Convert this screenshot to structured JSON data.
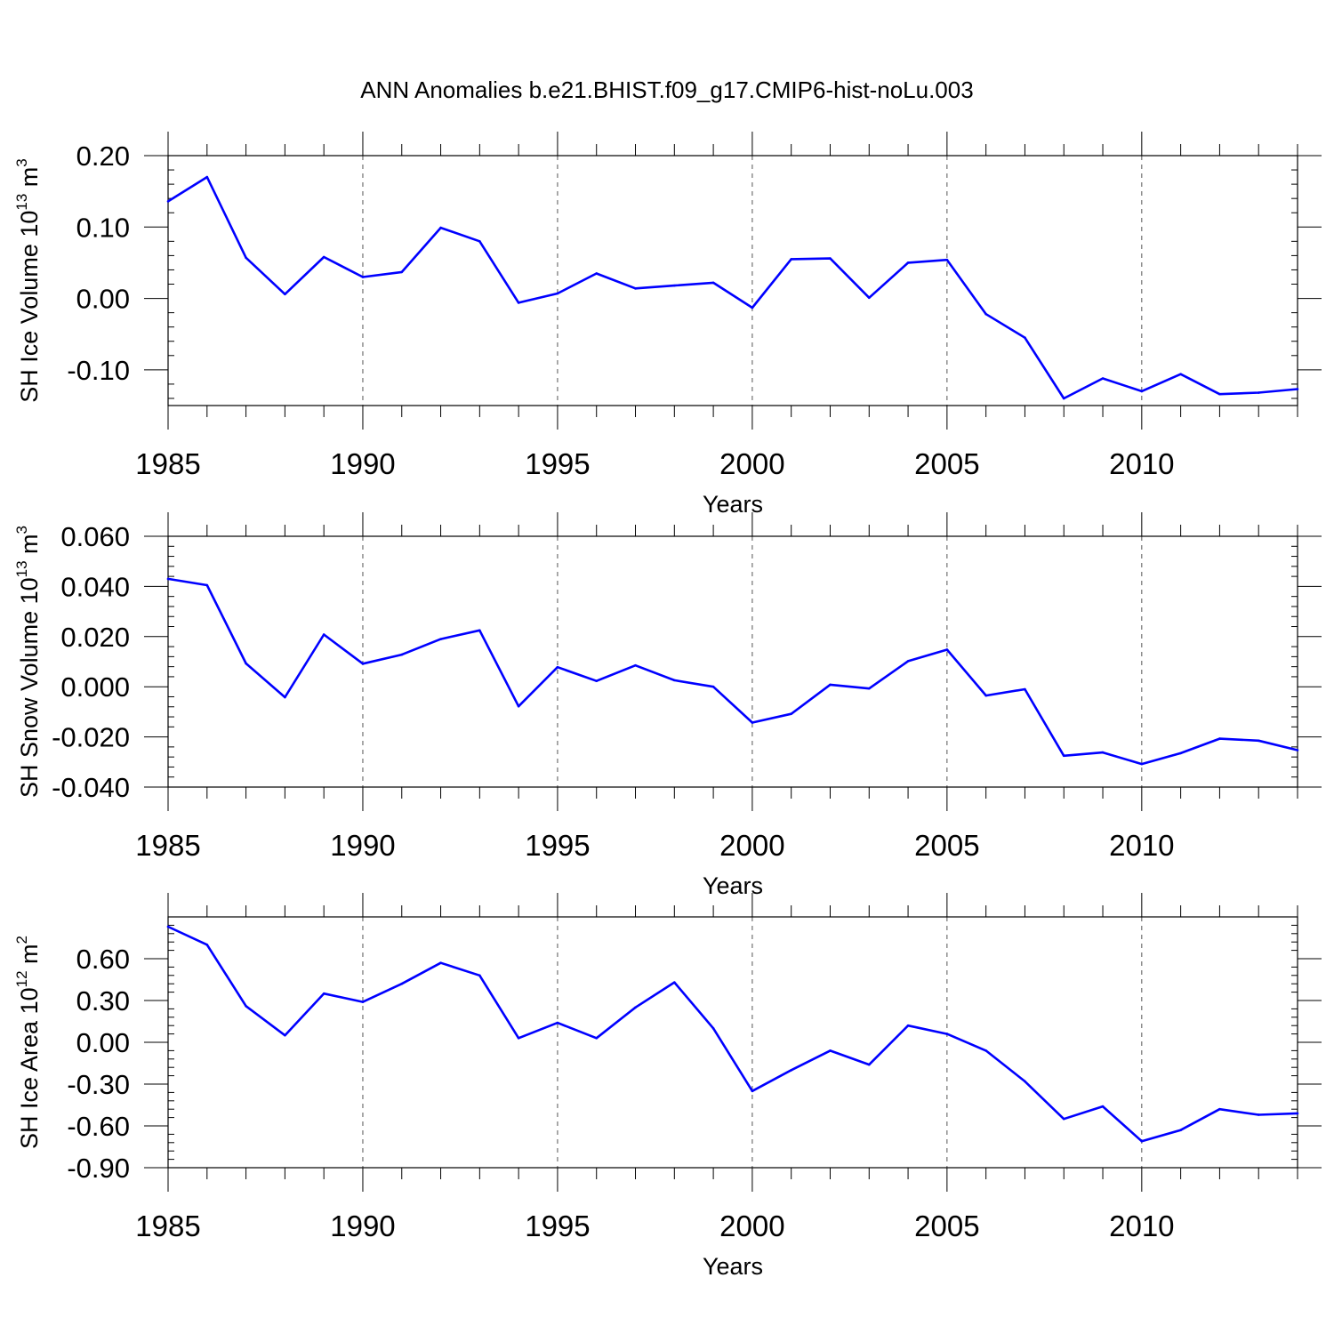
{
  "chart_data": {
    "title": "ANN Anomalies b.e21.BHIST.f09_g17.CMIP6-hist-noLu.003",
    "panels": [
      {
        "type": "line",
        "ylabel": "SH Ice Volume 10",
        "ylabel_exp": "13",
        "ylabel_unit": " m",
        "ylabel_unit_exp": "3",
        "xlabel": "Years",
        "xlim": [
          1985,
          2014
        ],
        "ylim": [
          -0.15,
          0.2
        ],
        "xticks": [
          1985,
          1990,
          1995,
          2000,
          2005,
          2010
        ],
        "xtick_labels": [
          "1985",
          "1990",
          "1995",
          "2000",
          "2005",
          "2010"
        ],
        "yticks": [
          0.2,
          0.1,
          0.0,
          -0.1
        ],
        "ytick_labels": [
          "0.20",
          "0.10",
          "0.00",
          "-0.10"
        ],
        "grid": "dashed vertical at major x ticks",
        "line_color": "#0000ff",
        "x": [
          1985,
          1986,
          1987,
          1988,
          1989,
          1990,
          1991,
          1992,
          1993,
          1994,
          1995,
          1996,
          1997,
          1998,
          1999,
          2000,
          2001,
          2002,
          2003,
          2004,
          2005,
          2006,
          2007,
          2008,
          2009,
          2010,
          2011,
          2012,
          2013,
          2014
        ],
        "values": [
          0.136,
          0.17,
          0.057,
          0.006,
          0.058,
          0.03,
          0.037,
          0.099,
          0.08,
          -0.006,
          0.007,
          0.035,
          0.014,
          0.018,
          0.022,
          -0.013,
          0.055,
          0.056,
          0.001,
          0.05,
          0.054,
          -0.022,
          -0.055,
          -0.14,
          -0.112,
          -0.13,
          -0.106,
          -0.134,
          -0.132,
          -0.127
        ]
      },
      {
        "type": "line",
        "ylabel": "SH Snow Volume 10",
        "ylabel_exp": "13",
        "ylabel_unit": " m",
        "ylabel_unit_exp": "3",
        "xlabel": "Years",
        "xlim": [
          1985,
          2014
        ],
        "ylim": [
          -0.04,
          0.06
        ],
        "xticks": [
          1985,
          1990,
          1995,
          2000,
          2005,
          2010
        ],
        "xtick_labels": [
          "1985",
          "1990",
          "1995",
          "2000",
          "2005",
          "2010"
        ],
        "yticks": [
          0.06,
          0.04,
          0.02,
          0.0,
          -0.02,
          -0.04
        ],
        "ytick_labels": [
          "0.060",
          "0.040",
          "0.020",
          "0.000",
          "-0.020",
          "-0.040"
        ],
        "grid": "dashed vertical at major x ticks",
        "line_color": "#0000ff",
        "x": [
          1985,
          1986,
          1987,
          1988,
          1989,
          1990,
          1991,
          1992,
          1993,
          1994,
          1995,
          1996,
          1997,
          1998,
          1999,
          2000,
          2001,
          2002,
          2003,
          2004,
          2005,
          2006,
          2007,
          2008,
          2009,
          2010,
          2011,
          2012,
          2013,
          2014
        ],
        "values": [
          0.043,
          0.0405,
          0.0093,
          -0.0042,
          0.0208,
          0.0092,
          0.0128,
          0.019,
          0.0225,
          -0.0078,
          0.0078,
          0.0023,
          0.0085,
          0.0026,
          0.0,
          -0.0143,
          -0.0108,
          0.0008,
          -0.0007,
          0.0102,
          0.0148,
          -0.0035,
          -0.001,
          -0.0275,
          -0.0262,
          -0.0308,
          -0.0265,
          -0.0207,
          -0.0215,
          -0.0253
        ]
      },
      {
        "type": "line",
        "ylabel": "SH Ice Area 10",
        "ylabel_exp": "12",
        "ylabel_unit": " m",
        "ylabel_unit_exp": "2",
        "xlabel": "Years",
        "xlim": [
          1985,
          2014
        ],
        "ylim": [
          -0.9,
          0.9
        ],
        "xticks": [
          1985,
          1990,
          1995,
          2000,
          2005,
          2010
        ],
        "xtick_labels": [
          "1985",
          "1990",
          "1995",
          "2000",
          "2005",
          "2010"
        ],
        "yticks": [
          0.6,
          0.3,
          0.0,
          -0.3,
          -0.6,
          -0.9
        ],
        "ytick_labels": [
          "0.60",
          "0.30",
          "0.00",
          "-0.30",
          "-0.60",
          "-0.90"
        ],
        "grid": "dashed vertical at major x ticks",
        "line_color": "#0000ff",
        "x": [
          1985,
          1986,
          1987,
          1988,
          1989,
          1990,
          1991,
          1992,
          1993,
          1994,
          1995,
          1996,
          1997,
          1998,
          1999,
          2000,
          2001,
          2002,
          2003,
          2004,
          2005,
          2006,
          2007,
          2008,
          2009,
          2010,
          2011,
          2012,
          2013,
          2014
        ],
        "values": [
          0.83,
          0.7,
          0.26,
          0.05,
          0.35,
          0.29,
          0.42,
          0.57,
          0.48,
          0.03,
          0.14,
          0.03,
          0.25,
          0.43,
          0.1,
          -0.35,
          -0.2,
          -0.06,
          -0.16,
          0.12,
          0.06,
          -0.06,
          -0.28,
          -0.55,
          -0.46,
          -0.71,
          -0.63,
          -0.48,
          -0.52,
          -0.51
        ]
      }
    ]
  }
}
